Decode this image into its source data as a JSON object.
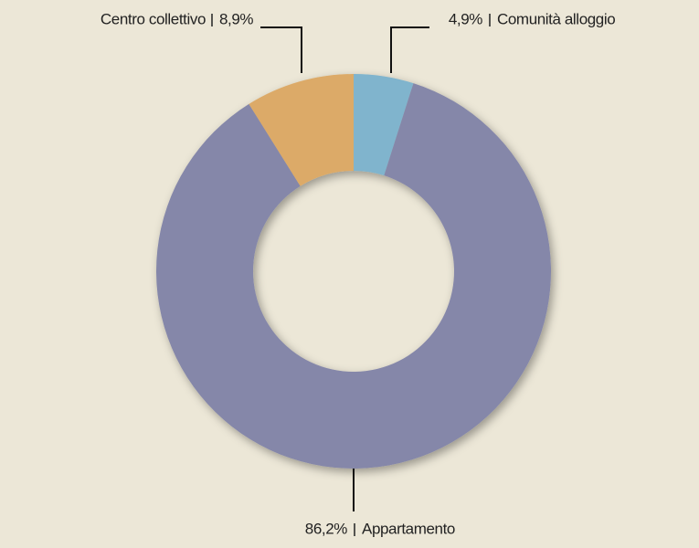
{
  "chart_data": {
    "type": "donut",
    "categories": [
      "Comunità alloggio",
      "Appartamento",
      "Centro collettivo"
    ],
    "values": [
      4.9,
      86.2,
      8.9
    ],
    "value_labels": [
      "4,9%",
      "86,2%",
      "8,9%"
    ],
    "colors": [
      "#80b4cd",
      "#8587a9",
      "#dcaa68"
    ]
  }
}
